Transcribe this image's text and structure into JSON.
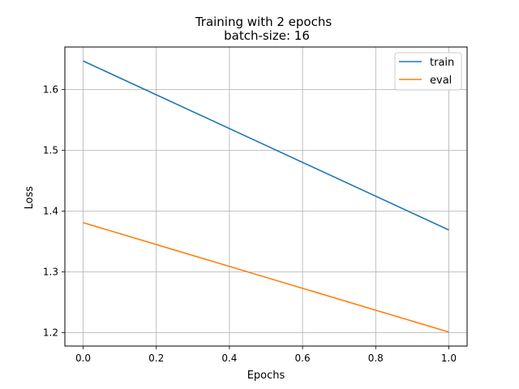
{
  "chart_data": {
    "type": "line",
    "title": "Training with 2 epochs",
    "subtitle": "batch-size: 16",
    "xlabel": "Epochs",
    "ylabel": "Loss",
    "x": [
      0.0,
      1.0
    ],
    "series": [
      {
        "name": "train",
        "color": "#1f77b4",
        "values": [
          1.647,
          1.369
        ]
      },
      {
        "name": "eval",
        "color": "#ff7f0e",
        "values": [
          1.381,
          1.201
        ]
      }
    ],
    "xlim": [
      -0.05,
      1.05
    ],
    "ylim": [
      1.178,
      1.67
    ],
    "xticks": [
      0.0,
      0.2,
      0.4,
      0.6,
      0.8,
      1.0
    ],
    "xtick_labels": [
      "0.0",
      "0.2",
      "0.4",
      "0.6",
      "0.8",
      "1.0"
    ],
    "yticks": [
      1.2,
      1.3,
      1.4,
      1.5,
      1.6
    ],
    "ytick_labels": [
      "1.2",
      "1.3",
      "1.4",
      "1.5",
      "1.6"
    ],
    "grid": true,
    "legend_position": "top-right"
  }
}
